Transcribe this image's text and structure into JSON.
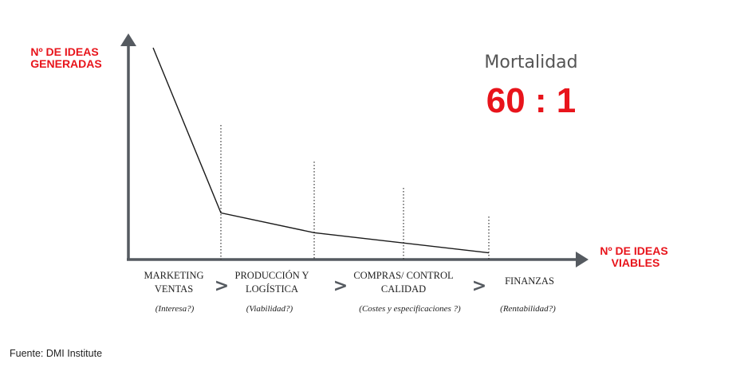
{
  "chart_data": {
    "type": "line",
    "y_axis_label": [
      "Nº DE IDEAS",
      "GENERADAS"
    ],
    "x_axis_label": [
      "Nº DE IDEAS",
      "VIABLES"
    ],
    "series": [
      {
        "values": [
          60,
          12.5,
          6.8,
          1
        ]
      }
    ],
    "ylim": [
      0,
      60
    ],
    "grid": false,
    "stages": [
      {
        "lines": [
          "MARKETING",
          "VENTAS"
        ],
        "question": "(Interesa?)"
      },
      {
        "lines": [
          "PRODUCCIÓN Y",
          "LOGÍSTICA"
        ],
        "question": "(Viabilidad?)"
      },
      {
        "lines": [
          "COMPRAS/ CONTROL",
          "CALIDAD"
        ],
        "question": "(Costes y especificaciones ?)"
      },
      {
        "lines": [
          "FINANZAS"
        ],
        "question": "(Rentabilidad?)"
      }
    ],
    "separator": ">",
    "annotation": {
      "title": "Mortalidad",
      "ratio": "60 : 1"
    }
  },
  "source": "Fuente: DMI Institute",
  "colors": {
    "accent": "#e8141b",
    "axis": "#555a60",
    "line": "#1a1a1a"
  }
}
